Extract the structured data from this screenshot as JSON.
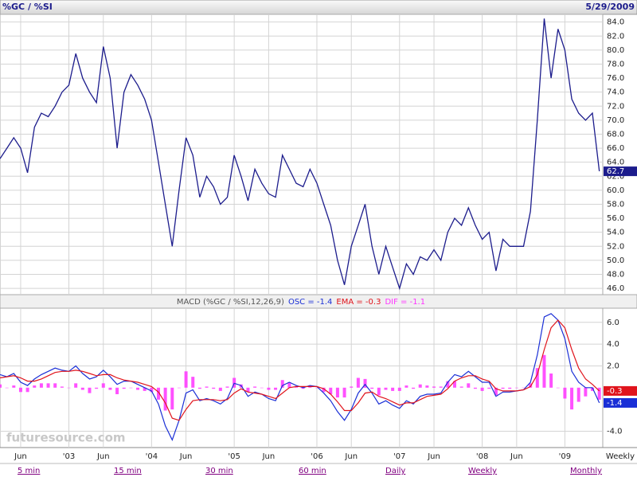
{
  "header": {
    "title": "%GC / %SI",
    "date": "5/29/2009"
  },
  "chart_data": [
    {
      "type": "line",
      "color": "#1c1c8c",
      "x": [
        2,
        3,
        4,
        5,
        6,
        7,
        8,
        9,
        10,
        11,
        12,
        13,
        14,
        15,
        16,
        17,
        18,
        19,
        20,
        21,
        22,
        23,
        24,
        25,
        26,
        27,
        28,
        29,
        30,
        31,
        32,
        33,
        34,
        35,
        36,
        37,
        38,
        39,
        40,
        41,
        42,
        43,
        44,
        45,
        46,
        47,
        48,
        49,
        50,
        51,
        52,
        53,
        54,
        55,
        56,
        57,
        58,
        59,
        60,
        61,
        62,
        63,
        64,
        65,
        66,
        67,
        68,
        69,
        70,
        71,
        72,
        73,
        74,
        75,
        76,
        77,
        78,
        79,
        80,
        81,
        82,
        83,
        84,
        85,
        86,
        87,
        88,
        89
      ],
      "values": [
        64.5,
        66,
        67.5,
        66,
        62.5,
        69,
        71,
        70.5,
        72,
        74,
        75,
        79.5,
        76,
        74,
        72.5,
        80.5,
        76,
        66,
        74,
        76.5,
        75,
        73,
        70,
        64,
        58,
        52,
        60,
        67.5,
        65,
        59,
        62,
        60.5,
        58,
        59,
        65,
        62,
        58.5,
        63,
        61,
        59.5,
        59,
        65,
        63,
        61,
        60.5,
        63,
        61,
        58,
        55,
        50,
        46.5,
        52,
        55,
        58,
        52,
        48,
        52,
        49,
        46,
        49.5,
        48,
        50.5,
        50,
        51.5,
        50,
        54,
        56,
        55,
        57.5,
        55,
        53,
        54,
        48.5,
        53,
        52,
        52,
        52,
        57,
        70,
        84.5,
        76,
        83,
        80,
        73,
        71,
        70,
        71,
        62.7
      ],
      "last_value": 62.7,
      "xlim": [
        2,
        89.5
      ],
      "ylim": [
        45.1,
        85.1
      ],
      "yticks": [
        {
          "value": 46,
          "label": "46.0"
        },
        {
          "value": 48,
          "label": "48.0"
        },
        {
          "value": 50,
          "label": "50.0"
        },
        {
          "value": 52,
          "label": "52.0"
        },
        {
          "value": 54,
          "label": "54.0"
        },
        {
          "value": 56,
          "label": "56.0"
        },
        {
          "value": 58,
          "label": "58.0"
        },
        {
          "value": 60,
          "label": "60.0"
        },
        {
          "value": 62,
          "label": "62.0"
        },
        {
          "value": 64,
          "label": "64.0"
        },
        {
          "value": 66,
          "label": "66.0"
        },
        {
          "value": 68,
          "label": "68.0"
        },
        {
          "value": 70,
          "label": "70.0"
        },
        {
          "value": 72,
          "label": "72.0"
        },
        {
          "value": 74,
          "label": "74.0"
        },
        {
          "value": 76,
          "label": "76.0"
        },
        {
          "value": 78,
          "label": "78.0"
        },
        {
          "value": 80,
          "label": "80.0"
        },
        {
          "value": 82,
          "label": "82.0"
        },
        {
          "value": 84,
          "label": "84.0"
        }
      ],
      "grid": true
    },
    {
      "type": "line",
      "title": "MACD (%GC / %SI,12,26,9)",
      "x": [
        2,
        3,
        4,
        5,
        6,
        7,
        8,
        9,
        10,
        11,
        12,
        13,
        14,
        15,
        16,
        17,
        18,
        19,
        20,
        21,
        22,
        23,
        24,
        25,
        26,
        27,
        28,
        29,
        30,
        31,
        32,
        33,
        34,
        35,
        36,
        37,
        38,
        39,
        40,
        41,
        42,
        43,
        44,
        45,
        46,
        47,
        48,
        49,
        50,
        51,
        52,
        53,
        54,
        55,
        56,
        57,
        58,
        59,
        60,
        61,
        62,
        63,
        64,
        65,
        66,
        67,
        68,
        69,
        70,
        71,
        72,
        73,
        74,
        75,
        76,
        77,
        78,
        79,
        80,
        81,
        82,
        83,
        84,
        85,
        86,
        87,
        88,
        89
      ],
      "series": [
        {
          "name": "OSC = -1.4",
          "kind": "line",
          "color": "#1a2fd6",
          "last": -1.4,
          "values": [
            1.2,
            1.0,
            1.3,
            0.5,
            0.2,
            0.8,
            1.2,
            1.5,
            1.8,
            1.6,
            1.5,
            2.0,
            1.3,
            0.8,
            1.0,
            1.6,
            1.0,
            0.3,
            0.6,
            0.6,
            0.3,
            0,
            -0.3,
            -1.5,
            -3.5,
            -4.8,
            -3.0,
            -0.5,
            -0.2,
            -1.2,
            -1.0,
            -1.2,
            -1.5,
            -1.0,
            0.4,
            0.2,
            -0.8,
            -0.4,
            -0.6,
            -1.0,
            -1.2,
            0.2,
            0.5,
            0.2,
            0,
            0.2,
            0.1,
            -0.5,
            -1.2,
            -2.2,
            -3.0,
            -2.0,
            -0.5,
            0.3,
            -0.5,
            -1.5,
            -1.2,
            -1.6,
            -1.9,
            -1.2,
            -1.5,
            -0.8,
            -0.6,
            -0.6,
            -0.5,
            0.5,
            1.2,
            1.0,
            1.5,
            1.0,
            0.5,
            0.5,
            -0.8,
            -0.4,
            -0.4,
            -0.3,
            -0.2,
            0.5,
            3.0,
            6.5,
            6.8,
            6.2,
            4.5,
            1.5,
            0.5,
            0,
            0,
            -1.4
          ]
        },
        {
          "name": "EMA = -0.3",
          "kind": "line",
          "color": "#e0141c",
          "last": -0.3,
          "values": [
            0.9,
            1.0,
            1.1,
            0.9,
            0.6,
            0.6,
            0.8,
            1.1,
            1.4,
            1.5,
            1.5,
            1.6,
            1.5,
            1.3,
            1.1,
            1.2,
            1.2,
            0.9,
            0.7,
            0.6,
            0.5,
            0.3,
            0.1,
            -0.4,
            -1.4,
            -2.8,
            -3.0,
            -2.0,
            -1.2,
            -1.1,
            -1.1,
            -1.1,
            -1.2,
            -1.1,
            -0.5,
            -0.1,
            -0.4,
            -0.5,
            -0.6,
            -0.8,
            -1.0,
            -0.5,
            0,
            0.1,
            0.1,
            0.1,
            0.1,
            -0.1,
            -0.6,
            -1.3,
            -2.1,
            -2.1,
            -1.4,
            -0.5,
            -0.4,
            -0.8,
            -1.0,
            -1.3,
            -1.6,
            -1.4,
            -1.4,
            -1.1,
            -0.8,
            -0.7,
            -0.6,
            -0.1,
            0.6,
            0.9,
            1.1,
            1.1,
            0.8,
            0.6,
            -0.1,
            -0.3,
            -0.3,
            -0.3,
            -0.2,
            0.1,
            1.2,
            3.5,
            5.5,
            6.2,
            5.5,
            3.5,
            1.8,
            0.8,
            0.3,
            -0.3
          ]
        },
        {
          "name": "DIF = -1.1",
          "kind": "bar",
          "color": "#ff33ff",
          "values": [
            0.3,
            0,
            0.2,
            -0.4,
            -0.4,
            0.2,
            0.4,
            0.4,
            0.4,
            0.1,
            0,
            0.4,
            -0.2,
            -0.5,
            -0.1,
            0.4,
            -0.2,
            -0.6,
            -0.1,
            0,
            -0.2,
            -0.3,
            -0.4,
            -1.1,
            -2.1,
            -2.0,
            0,
            1.5,
            1.0,
            -0.1,
            0.1,
            -0.1,
            -0.3,
            0.1,
            0.9,
            0.3,
            -0.4,
            0.1,
            0,
            -0.2,
            -0.2,
            0.7,
            0.5,
            0.1,
            -0.1,
            0.1,
            0,
            -0.4,
            -0.6,
            -0.9,
            -0.9,
            0.1,
            0.9,
            0.8,
            -0.1,
            -0.7,
            -0.2,
            -0.3,
            -0.3,
            0.2,
            -0.1,
            0.3,
            0.2,
            0.1,
            0.1,
            0.6,
            0.6,
            0.1,
            0.4,
            -0.1,
            -0.3,
            -0.1,
            -0.7,
            -0.1,
            -0.1,
            0,
            0,
            0.4,
            1.8,
            3.0,
            1.3,
            0,
            -1.0,
            -2.0,
            -1.3,
            -0.8,
            -0.3,
            -1.1
          ]
        }
      ],
      "xlim": [
        2,
        89.5
      ],
      "ylim": [
        -5.5,
        7.3
      ],
      "yticks": [
        {
          "value": 6,
          "label": "6.0"
        },
        {
          "value": 4,
          "label": "4.0"
        },
        {
          "value": 2,
          "label": "2.0"
        },
        {
          "value": -4,
          "label": "-4.0"
        }
      ],
      "xticks": [
        {
          "value": 5,
          "label": "Jun"
        },
        {
          "value": 12,
          "label": "'03"
        },
        {
          "value": 17,
          "label": "Jun"
        },
        {
          "value": 24,
          "label": "'04"
        },
        {
          "value": 29,
          "label": "Jun"
        },
        {
          "value": 36,
          "label": "'05"
        },
        {
          "value": 41,
          "label": "Jun"
        },
        {
          "value": 48,
          "label": "'06"
        },
        {
          "value": 53,
          "label": "Jun"
        },
        {
          "value": 60,
          "label": "'07"
        },
        {
          "value": 65,
          "label": "Jun"
        },
        {
          "value": 72,
          "label": "'08"
        },
        {
          "value": 77,
          "label": "Jun"
        },
        {
          "value": 84,
          "label": "'09"
        }
      ],
      "x_label": "Weekly",
      "grid": true
    }
  ],
  "watermark": "futuresource.com",
  "tabs": [
    "5 min",
    "15 min",
    "30 min",
    "60 min",
    "Daily",
    "Weekly",
    "Monthly"
  ]
}
